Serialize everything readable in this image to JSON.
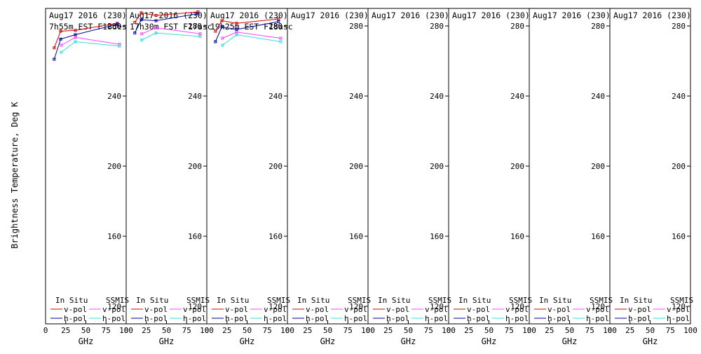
{
  "ylabel": "Brightness Temperature, Deg K",
  "colors": {
    "insitu_v": "#d40000",
    "insitu_h": "#000099",
    "ssmis_v": "#ff44ff",
    "ssmis_h": "#33dddd"
  },
  "legend": {
    "insitu": "In Situ",
    "ssmis": "SSMIS",
    "vpol": "v-pol",
    "hpol": "h-pol"
  },
  "chart_data": [
    {
      "type": "line",
      "title": "Aug17 2016 (230)",
      "subtitle": "7h55m  EST F18des",
      "xlabel": "GHz",
      "xlim": [
        0,
        100
      ],
      "ylim": [
        110,
        290
      ],
      "xticks": [
        0,
        25,
        50,
        75,
        100
      ],
      "yticks": [
        120,
        160,
        200,
        240,
        280
      ],
      "series": [
        {
          "name": "In Situ v-pol",
          "x": [
            10.7,
            18.7,
            37,
            89
          ],
          "y": [
            267.5,
            277,
            277.5,
            281.5
          ]
        },
        {
          "name": "In Situ h-pol",
          "x": [
            10.7,
            18.7,
            37,
            89
          ],
          "y": [
            261,
            272.5,
            275,
            281
          ]
        },
        {
          "name": "SSMIS v-pol",
          "x": [
            19.35,
            37,
            91.66
          ],
          "y": [
            269,
            273.5,
            269.5
          ]
        },
        {
          "name": "SSMIS h-pol",
          "x": [
            19.35,
            37,
            91.66
          ],
          "y": [
            265,
            271,
            268.5
          ]
        }
      ]
    },
    {
      "type": "line",
      "title": "Aug17 2016 (230)",
      "subtitle": "17h30m  EST F17asc",
      "xlabel": "GHz",
      "xlim": [
        0,
        100
      ],
      "ylim": [
        110,
        290
      ],
      "xticks": [
        0,
        25,
        50,
        75,
        100
      ],
      "yticks": [
        120,
        160,
        200,
        240,
        280
      ],
      "series": [
        {
          "name": "In Situ v-pol",
          "x": [
            10.7,
            18.7,
            37,
            89
          ],
          "y": [
            282,
            287.5,
            286,
            288
          ]
        },
        {
          "name": "In Situ h-pol",
          "x": [
            10.7,
            18.7,
            37,
            89
          ],
          "y": [
            276,
            283.5,
            283,
            287
          ]
        },
        {
          "name": "SSMIS v-pol",
          "x": [
            19.35,
            37,
            91.66
          ],
          "y": [
            275.5,
            279,
            275.5
          ]
        },
        {
          "name": "SSMIS h-pol",
          "x": [
            19.35,
            37,
            91.66
          ],
          "y": [
            272,
            276,
            274
          ]
        }
      ]
    },
    {
      "type": "line",
      "title": "Aug17 2016 (230)",
      "subtitle": "19h25m  EST F18asc",
      "xlabel": "GHz",
      "xlim": [
        0,
        100
      ],
      "ylim": [
        110,
        290
      ],
      "xticks": [
        0,
        25,
        50,
        75,
        100
      ],
      "yticks": [
        120,
        160,
        200,
        240,
        280
      ],
      "series": [
        {
          "name": "In Situ v-pol",
          "x": [
            10.7,
            18.7,
            37,
            89
          ],
          "y": [
            277,
            283,
            281.5,
            284
          ]
        },
        {
          "name": "In Situ h-pol",
          "x": [
            10.7,
            18.7,
            37,
            89
          ],
          "y": [
            271,
            279.5,
            278,
            282.5
          ]
        },
        {
          "name": "SSMIS v-pol",
          "x": [
            19.35,
            37,
            91.66
          ],
          "y": [
            273,
            276.5,
            273
          ]
        },
        {
          "name": "SSMIS h-pol",
          "x": [
            19.35,
            37,
            91.66
          ],
          "y": [
            269,
            275,
            271
          ]
        }
      ]
    },
    {
      "type": "line",
      "title": "Aug17 2016 (230)",
      "subtitle": "",
      "xlabel": "GHz",
      "xlim": [
        0,
        100
      ],
      "ylim": [
        110,
        290
      ],
      "xticks": [
        0,
        25,
        50,
        75,
        100
      ],
      "yticks": [
        120,
        160,
        200,
        240,
        280
      ],
      "series": []
    },
    {
      "type": "line",
      "title": "Aug17 2016 (230)",
      "subtitle": "",
      "xlabel": "GHz",
      "xlim": [
        0,
        100
      ],
      "ylim": [
        110,
        290
      ],
      "xticks": [
        0,
        25,
        50,
        75,
        100
      ],
      "yticks": [
        120,
        160,
        200,
        240,
        280
      ],
      "series": []
    },
    {
      "type": "line",
      "title": "Aug17 2016 (230)",
      "subtitle": "",
      "xlabel": "GHz",
      "xlim": [
        0,
        100
      ],
      "ylim": [
        110,
        290
      ],
      "xticks": [
        0,
        25,
        50,
        75,
        100
      ],
      "yticks": [
        120,
        160,
        200,
        240,
        280
      ],
      "series": []
    },
    {
      "type": "line",
      "title": "Aug17 2016 (230)",
      "subtitle": "",
      "xlabel": "GHz",
      "xlim": [
        0,
        100
      ],
      "ylim": [
        110,
        290
      ],
      "xticks": [
        0,
        25,
        50,
        75,
        100
      ],
      "yticks": [
        120,
        160,
        200,
        240,
        280
      ],
      "series": []
    },
    {
      "type": "line",
      "title": "Aug17 2016 (230)",
      "subtitle": "",
      "xlabel": "GHz",
      "xlim": [
        0,
        100
      ],
      "ylim": [
        110,
        290
      ],
      "xticks": [
        0,
        25,
        50,
        75,
        100
      ],
      "yticks": [
        120,
        160,
        200,
        240,
        280
      ],
      "series": []
    }
  ]
}
